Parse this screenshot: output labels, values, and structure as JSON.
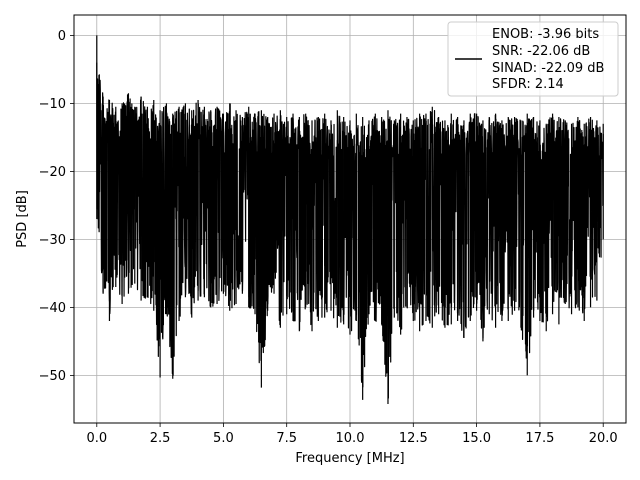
{
  "chart_data": {
    "type": "line",
    "xlabel": "Frequency [MHz]",
    "ylabel": "PSD [dB]",
    "xlim": [
      -0.9,
      20.9
    ],
    "ylim": [
      -57,
      3
    ],
    "xticks": [
      0.0,
      2.5,
      5.0,
      7.5,
      10.0,
      12.5,
      15.0,
      17.5,
      20.0
    ],
    "xtick_labels": [
      "0.0",
      "2.5",
      "5.0",
      "7.5",
      "10.0",
      "12.5",
      "15.0",
      "17.5",
      "20.0"
    ],
    "yticks": [
      0,
      -10,
      -20,
      -30,
      -40,
      -50
    ],
    "ytick_labels": [
      "0",
      "−10",
      "−20",
      "−30",
      "−40",
      "−50"
    ],
    "grid": true,
    "legend_position": "top-right",
    "legend_lines": [
      "ENOB: -3.96 bits",
      "SNR: -22.06 dB",
      "SINAD: -22.09 dB",
      "SFDR: 2.14"
    ],
    "series": [
      {
        "color": "#000000",
        "x": [
          0.0,
          0.25,
          0.5,
          0.75,
          1.0,
          1.25,
          1.5,
          1.75,
          2.0,
          2.25,
          2.5,
          2.75,
          3.0,
          3.25,
          3.5,
          3.75,
          4.0,
          4.25,
          4.5,
          4.75,
          5.0,
          5.25,
          5.5,
          5.75,
          6.0,
          6.25,
          6.5,
          6.75,
          7.0,
          7.25,
          7.5,
          7.75,
          8.0,
          8.25,
          8.5,
          8.75,
          9.0,
          9.25,
          9.5,
          9.75,
          10.0,
          10.25,
          10.5,
          10.75,
          11.0,
          11.25,
          11.5,
          11.75,
          12.0,
          12.25,
          12.5,
          12.75,
          13.0,
          13.25,
          13.5,
          13.75,
          14.0,
          14.25,
          14.5,
          14.75,
          15.0,
          15.25,
          15.5,
          15.75,
          16.0,
          16.25,
          16.5,
          16.75,
          17.0,
          17.25,
          17.5,
          17.75,
          18.0,
          18.25,
          18.5,
          18.75,
          19.0,
          19.25,
          19.5,
          19.75,
          20.0
        ],
        "upper": [
          0.0,
          -9.0,
          -9.5,
          -10.5,
          -10.0,
          -8.5,
          -10.5,
          -9.0,
          -10.5,
          -9.5,
          -11.0,
          -10.0,
          -11.5,
          -10.5,
          -10.0,
          -11.0,
          -9.5,
          -10.5,
          -11.0,
          -10.5,
          -11.5,
          -10.0,
          -11.0,
          -12.0,
          -10.5,
          -11.5,
          -11.0,
          -12.0,
          -11.5,
          -11.0,
          -12.0,
          -11.5,
          -12.0,
          -11.5,
          -12.5,
          -12.0,
          -11.5,
          -12.5,
          -11.0,
          -12.0,
          -12.5,
          -11.5,
          -12.0,
          -12.5,
          -11.5,
          -12.0,
          -11.0,
          -12.5,
          -11.5,
          -12.0,
          -12.5,
          -11.5,
          -11.5,
          -10.5,
          -12.0,
          -12.5,
          -11.5,
          -12.0,
          -12.5,
          -11.5,
          -11.5,
          -12.5,
          -12.0,
          -11.5,
          -12.5,
          -12.0,
          -12.0,
          -12.5,
          -11.5,
          -12.0,
          -12.5,
          -13.0,
          -11.5,
          -12.0,
          -12.5,
          -13.0,
          -12.0,
          -13.0,
          -12.0,
          -12.5,
          -13.0
        ],
        "lower": [
          -27.0,
          -38.0,
          -42.0,
          -37.0,
          -39.5,
          -38.0,
          -36.5,
          -39.0,
          -38.5,
          -40.5,
          -50.3,
          -41.0,
          -50.5,
          -42.0,
          -38.5,
          -41.5,
          -39.0,
          -38.5,
          -40.0,
          -39.5,
          -38.0,
          -40.5,
          -39.5,
          -38.0,
          -40.0,
          -41.0,
          -51.8,
          -40.5,
          -38.0,
          -43.0,
          -41.0,
          -42.0,
          -43.5,
          -40.0,
          -43.5,
          -42.0,
          -41.5,
          -40.5,
          -43.0,
          -42.5,
          -44.0,
          -42.0,
          -53.6,
          -41.0,
          -42.0,
          -42.5,
          -54.2,
          -41.5,
          -44.0,
          -40.0,
          -42.0,
          -43.5,
          -42.0,
          -43.0,
          -41.0,
          -43.0,
          -42.5,
          -42.0,
          -44.5,
          -42.0,
          -40.5,
          -45.0,
          -41.0,
          -43.0,
          -42.0,
          -42.0,
          -40.5,
          -43.0,
          -50.0,
          -41.5,
          -42.0,
          -43.5,
          -41.0,
          -42.5,
          -39.5,
          -41.0,
          -40.0,
          -42.0,
          -40.0,
          -39.0,
          -30.0
        ]
      }
    ]
  }
}
